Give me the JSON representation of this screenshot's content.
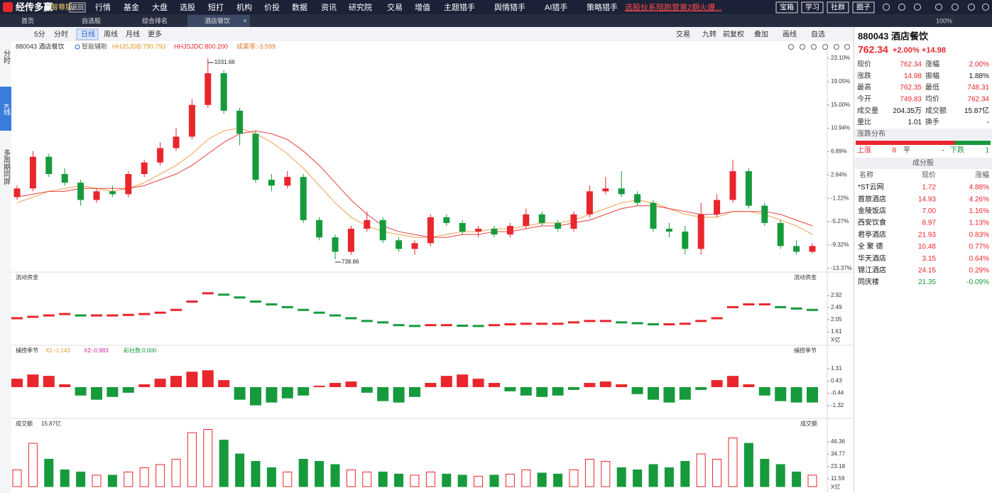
{
  "top_bar": {
    "brand": "经传多赢",
    "edition": "智尊版",
    "back": "返回",
    "menu": [
      "行情",
      "基金",
      "大盘",
      "选股",
      "短打",
      "机构",
      "价投",
      "数据",
      "资讯",
      "研究院",
      "交易",
      "增值",
      "主题猎手",
      "舆情猎手",
      "AI猎手",
      "策略猎手"
    ],
    "promo": "选股伙系陪跑营第2期火爆...",
    "buttons": [
      "宝箱",
      "学习",
      "社群",
      "圈子"
    ]
  },
  "tabs": [
    "首页",
    "自选股",
    "综合排名",
    "酒店餐饮"
  ],
  "zoom": "100%",
  "toolbar": {
    "periods": [
      "5分",
      "分时",
      "日线",
      "周线",
      "月线",
      "更多"
    ],
    "tools": [
      "交易",
      "九转",
      "前复权",
      "叠加",
      "画线",
      "自选"
    ]
  },
  "side_tabs": [
    "分时",
    "K线",
    "多周期同屏"
  ],
  "chart_data": [
    {
      "type": "candlestick",
      "title": "880043 酒店餐饮",
      "indicators": [
        "智能辅助",
        "HHJSJDB:790.793",
        "HHJSJDC:800.200",
        "成离率:-3.599"
      ],
      "max_label": 1031.66,
      "min_label": 738.86,
      "ylim": [
        -13.9,
        23.6
      ],
      "yticks": [
        {
          "value": 23.1,
          "label": "23.10%"
        },
        {
          "value": 19.05,
          "label": "19.05%"
        },
        {
          "value": 15.0,
          "label": "15.00%"
        },
        {
          "value": 10.94,
          "label": "10.94%"
        },
        {
          "value": 6.89,
          "label": "6.89%"
        },
        {
          "value": 2.84,
          "label": "2.84%"
        },
        {
          "value": -1.22,
          "label": "-1.22%"
        },
        {
          "value": -5.27,
          "label": "-5.27%"
        },
        {
          "value": -9.32,
          "label": "-9.32%"
        },
        {
          "value": -13.37,
          "label": "-13.37%"
        }
      ],
      "candles": [
        [
          -1.0,
          0.5,
          1.0,
          -1.5
        ],
        [
          0.5,
          6.0,
          7.0,
          0.0
        ],
        [
          6.0,
          3.0,
          6.5,
          2.5
        ],
        [
          3.0,
          1.5,
          4.0,
          1.0
        ],
        [
          1.5,
          -1.5,
          2.0,
          -2.5
        ],
        [
          -1.5,
          0.0,
          0.5,
          -2.0
        ],
        [
          0.0,
          -0.5,
          1.0,
          -1.0
        ],
        [
          -0.5,
          3.0,
          3.5,
          -1.0
        ],
        [
          3.0,
          5.0,
          5.5,
          2.5
        ],
        [
          5.0,
          7.5,
          8.5,
          4.5
        ],
        [
          7.5,
          9.5,
          11.0,
          7.0
        ],
        [
          9.5,
          15.0,
          16.0,
          9.0
        ],
        [
          15.0,
          20.5,
          23.1,
          14.5
        ],
        [
          20.5,
          14.0,
          21.0,
          13.5
        ],
        [
          14.0,
          10.0,
          14.5,
          8.0
        ],
        [
          10.0,
          2.0,
          10.5,
          1.5
        ],
        [
          2.0,
          1.0,
          3.0,
          0.0
        ],
        [
          1.0,
          2.5,
          3.5,
          0.5
        ],
        [
          2.5,
          -5.0,
          3.0,
          -5.5
        ],
        [
          -5.0,
          -8.0,
          -4.5,
          -8.5
        ],
        [
          -8.0,
          -10.5,
          -7.5,
          -11.8
        ],
        [
          -10.5,
          -6.5,
          -6.0,
          -11.0
        ],
        [
          -6.5,
          -5.0,
          -3.5,
          -7.0
        ],
        [
          -5.0,
          -8.5,
          -4.5,
          -9.0
        ],
        [
          -8.5,
          -10.0,
          -8.0,
          -10.5
        ],
        [
          -10.0,
          -9.0,
          -8.5,
          -11.0
        ],
        [
          -9.0,
          -4.5,
          -4.0,
          -9.5
        ],
        [
          -4.5,
          -5.5,
          -4.0,
          -6.0
        ],
        [
          -5.5,
          -7.0,
          -5.0,
          -7.5
        ],
        [
          -7.0,
          -6.5,
          -6.0,
          -8.0
        ],
        [
          -6.5,
          -7.5,
          -6.0,
          -8.0
        ],
        [
          -7.5,
          -6.0,
          -5.5,
          -8.0
        ],
        [
          -6.0,
          -4.0,
          -3.0,
          -6.5
        ],
        [
          -4.0,
          -5.5,
          -3.5,
          -6.0
        ],
        [
          -5.5,
          -6.5,
          -5.0,
          -7.0
        ],
        [
          -6.5,
          -4.0,
          -3.5,
          -7.0
        ],
        [
          -4.0,
          0.0,
          1.0,
          -4.5
        ],
        [
          0.0,
          0.5,
          2.5,
          -0.5
        ],
        [
          0.5,
          -0.5,
          3.5,
          -1.0
        ],
        [
          -0.5,
          -2.0,
          0.0,
          -2.5
        ],
        [
          -2.0,
          -6.5,
          -1.5,
          -7.0
        ],
        [
          -6.5,
          -7.0,
          -5.5,
          -8.0
        ],
        [
          -7.0,
          -10.0,
          -6.0,
          -11.0
        ],
        [
          -10.0,
          -4.0,
          -2.0,
          -11.0
        ],
        [
          -4.0,
          -1.5,
          -0.5,
          -4.5
        ],
        [
          -1.5,
          3.5,
          5.5,
          -2.0
        ],
        [
          3.5,
          -2.5,
          4.0,
          -3.0
        ],
        [
          -2.5,
          -5.5,
          -2.0,
          -6.0
        ],
        [
          -5.5,
          -9.5,
          -5.0,
          -10.0
        ],
        [
          -9.5,
          -10.5,
          -8.5,
          -11.0
        ],
        [
          -10.5,
          -9.5,
          -9.0,
          -10.8
        ]
      ],
      "up_color": "#e8262c",
      "down_color": "#169a3c",
      "lines": [
        {
          "color": "#f0a050",
          "values": [
            -2,
            -1,
            0,
            0.5,
            1,
            0.5,
            0,
            0.5,
            1.5,
            3,
            4.5,
            6.5,
            9,
            10.5,
            11,
            10,
            8.5,
            6.5,
            4,
            1,
            -2,
            -4.5,
            -6,
            -7,
            -7.5,
            -8,
            -8,
            -7.5,
            -7,
            -7,
            -6.5,
            -6.5,
            -6,
            -5.5,
            -5.5,
            -5,
            -4,
            -3,
            -2,
            -1.5,
            -2,
            -3,
            -4,
            -4.5,
            -4.5,
            -3.5,
            -3.5,
            -4,
            -5,
            -6,
            -7.5
          ]
        },
        {
          "color": "#e84040",
          "values": [
            -1,
            -0.5,
            0,
            0,
            0.5,
            0.5,
            0.5,
            0.5,
            1,
            2,
            3,
            4.5,
            6.5,
            8.5,
            10,
            10.5,
            10,
            9,
            7,
            4.5,
            1.5,
            -1.5,
            -4,
            -6,
            -7,
            -7.5,
            -8,
            -8,
            -7.5,
            -7.5,
            -7,
            -7,
            -6.5,
            -6,
            -6,
            -5.5,
            -5,
            -4,
            -3,
            -2.5,
            -2.5,
            -3,
            -3.5,
            -4,
            -4,
            -3.5,
            -3.5,
            -3.5,
            -4,
            -5,
            -6
          ]
        }
      ]
    },
    {
      "type": "step",
      "title": "流动资金",
      "unit": "X亿",
      "ylim": [
        1.33,
        3.74
      ],
      "yticks": [
        2.92,
        2.49,
        2.05,
        1.61
      ],
      "values": [
        2.1,
        2.15,
        2.2,
        2.25,
        2.2,
        2.2,
        2.2,
        2.22,
        2.25,
        2.3,
        2.4,
        2.7,
        3.0,
        2.95,
        2.85,
        2.7,
        2.6,
        2.5,
        2.4,
        2.3,
        2.2,
        2.1,
        2.0,
        1.95,
        1.85,
        1.82,
        1.85,
        1.85,
        1.83,
        1.82,
        1.85,
        1.88,
        1.9,
        1.9,
        1.9,
        1.95,
        2.0,
        2.0,
        1.95,
        1.92,
        1.88,
        1.88,
        1.9,
        2.0,
        2.1,
        2.5,
        2.6,
        2.6,
        2.5,
        2.45,
        2.4
      ]
    },
    {
      "type": "oscillator",
      "title": "捕捞季节",
      "indicators": [
        "X1:-1.143",
        "X2:-0.983",
        "彩柱数:0.000"
      ],
      "ylim": [
        -2.03,
        2.43
      ],
      "yticks": [
        1.31,
        0.43,
        -0.44,
        -1.32
      ],
      "values": [
        0.6,
        0.9,
        0.8,
        0.2,
        -0.6,
        -0.9,
        -0.7,
        -0.4,
        0.2,
        0.6,
        0.8,
        1.1,
        1.2,
        0.5,
        -0.9,
        -1.3,
        -1.1,
        -0.8,
        -0.6,
        0.1,
        0.3,
        0.4,
        -0.4,
        -1.0,
        -1.1,
        -0.7,
        0.3,
        0.8,
        0.9,
        0.6,
        0.3,
        -0.3,
        -0.6,
        -0.7,
        -0.6,
        -0.2,
        0.3,
        0.4,
        0.2,
        -0.5,
        -0.9,
        -1.1,
        -0.9,
        -0.2,
        0.5,
        0.8,
        0.2,
        -0.6,
        -1.0,
        -1.1,
        -1.1
      ]
    },
    {
      "type": "volume",
      "title": "成交额",
      "total": "15.87亿",
      "unit": "X亿",
      "ylim": [
        4.24,
        59.7
      ],
      "yticks": [
        46.36,
        34.77,
        23.18,
        11.59
      ],
      "values": [
        20,
        45,
        30,
        20,
        18,
        15,
        15,
        18,
        22,
        25,
        30,
        55,
        58,
        48,
        35,
        28,
        22,
        18,
        30,
        28,
        25,
        20,
        18,
        18,
        16,
        15,
        18,
        16,
        15,
        14,
        15,
        16,
        20,
        17,
        16,
        20,
        30,
        28,
        22,
        20,
        25,
        22,
        28,
        35,
        30,
        50,
        45,
        30,
        25,
        18,
        15
      ]
    }
  ],
  "quote": {
    "title": "880043 酒店餐饮",
    "price": "762.34",
    "change_pct": "+2.00%",
    "change": "+14.98",
    "rows": [
      [
        "现价",
        "762.34",
        "涨幅",
        "2.00%"
      ],
      [
        "涨跌",
        "14.98",
        "振幅",
        "1.88%"
      ],
      [
        "最高",
        "762.35",
        "最低",
        "748.31"
      ],
      [
        "今开",
        "749.83",
        "均价",
        "762.34"
      ],
      [
        "成交量",
        "204.35万",
        "成交额",
        "15.87亿"
      ],
      [
        "量比",
        "1.01",
        "换手",
        "-"
      ]
    ],
    "distribution": {
      "title": "涨跌分布",
      "up_label": "上涨",
      "up": "8",
      "flat_label": "平",
      "flat": "-",
      "down_label": "下跌",
      "down": "1"
    },
    "constituents": {
      "title": "成分股",
      "columns": [
        "名称",
        "现价",
        "涨幅"
      ],
      "rows": [
        [
          "*ST云网",
          "1.72",
          "4.88%"
        ],
        [
          "首旅酒店",
          "14.93",
          "4.26%"
        ],
        [
          "金陵饭店",
          "7.00",
          "1.16%"
        ],
        [
          "西安饮食",
          "8.97",
          "1.13%"
        ],
        [
          "君亭酒店",
          "21.93",
          "0.83%"
        ],
        [
          "全 聚 德",
          "10.48",
          "0.77%"
        ],
        [
          "华天酒店",
          "3.15",
          "0.64%"
        ],
        [
          "锦江酒店",
          "24.15",
          "0.29%"
        ],
        [
          "同庆楼",
          "21.35",
          "-0.09%"
        ]
      ]
    }
  }
}
